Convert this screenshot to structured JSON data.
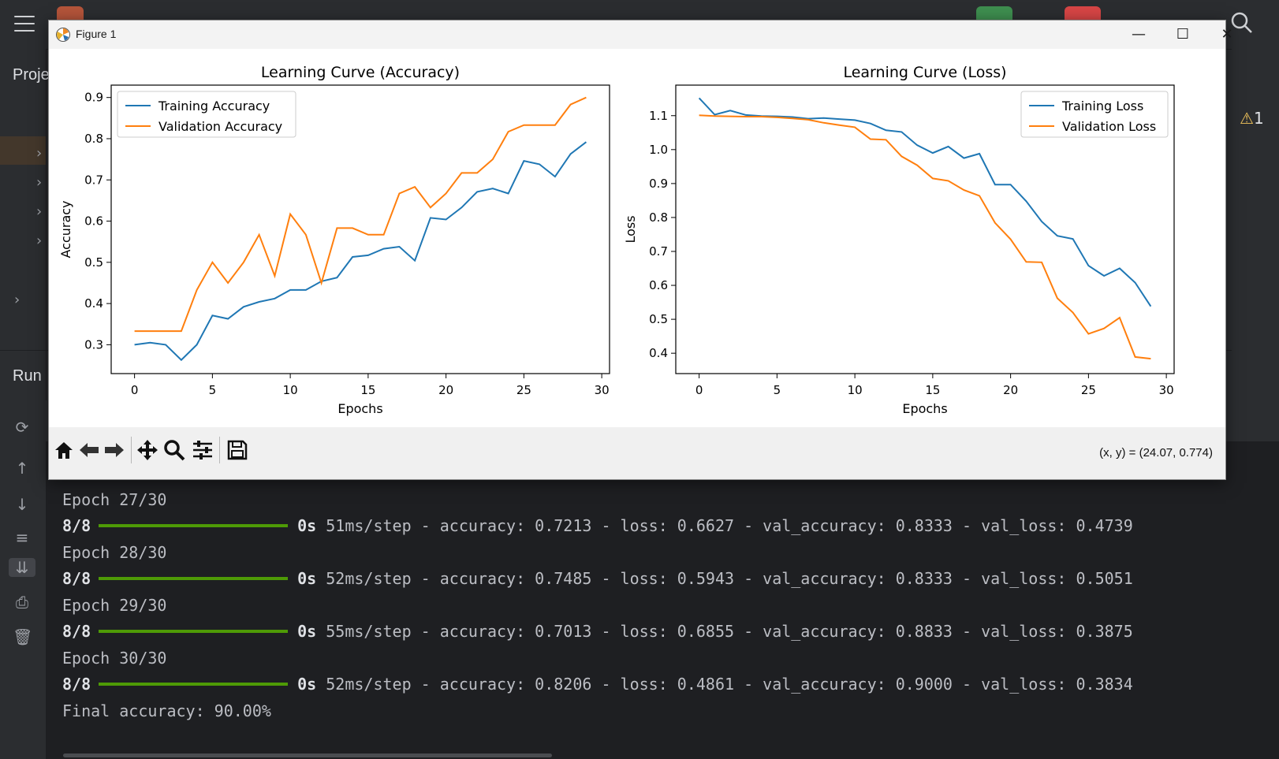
{
  "sidebar": {
    "project_label": "Proje",
    "run_label": "Run"
  },
  "notifications": {
    "warning_count": "1"
  },
  "figure_window": {
    "title": "Figure 1",
    "coord_readout": "(x, y) = (24.07, 0.774)"
  },
  "chart_data": [
    {
      "type": "line",
      "title": "Learning Curve (Accuracy)",
      "xlabel": "Epochs",
      "ylabel": "Accuracy",
      "xlim": [
        -1.5,
        30.5
      ],
      "ylim": [
        0.23,
        0.93
      ],
      "xticks": [
        0,
        5,
        10,
        15,
        20,
        25,
        30
      ],
      "yticks": [
        0.3,
        0.4,
        0.5,
        0.6,
        0.7,
        0.8,
        0.9
      ],
      "legend": "upper-left",
      "series": [
        {
          "name": "Training Accuracy",
          "color": "#1f77b4",
          "values": [
            0.3,
            0.305,
            0.3,
            0.263,
            0.3,
            0.371,
            0.363,
            0.392,
            0.404,
            0.412,
            0.433,
            0.433,
            0.454,
            0.463,
            0.513,
            0.517,
            0.533,
            0.538,
            0.504,
            0.608,
            0.604,
            0.633,
            0.671,
            0.679,
            0.667,
            0.746,
            0.738,
            0.708,
            0.763,
            0.792
          ]
        },
        {
          "name": "Validation Accuracy",
          "color": "#ff7f0e",
          "values": [
            0.333,
            0.333,
            0.333,
            0.333,
            0.433,
            0.5,
            0.45,
            0.5,
            0.567,
            0.467,
            0.617,
            0.567,
            0.45,
            0.583,
            0.583,
            0.567,
            0.567,
            0.667,
            0.683,
            0.633,
            0.667,
            0.717,
            0.717,
            0.75,
            0.817,
            0.833,
            0.833,
            0.833,
            0.883,
            0.9
          ]
        }
      ]
    },
    {
      "type": "line",
      "title": "Learning Curve (Loss)",
      "xlabel": "Epochs",
      "ylabel": "Loss",
      "xlim": [
        -1.5,
        30.5
      ],
      "ylim": [
        0.34,
        1.19
      ],
      "xticks": [
        0,
        5,
        10,
        15,
        20,
        25,
        30
      ],
      "yticks": [
        0.4,
        0.5,
        0.6,
        0.7,
        0.8,
        0.9,
        1.0,
        1.1
      ],
      "legend": "upper-right",
      "series": [
        {
          "name": "Training Loss",
          "color": "#1f77b4",
          "values": [
            1.152,
            1.103,
            1.115,
            1.102,
            1.099,
            1.098,
            1.096,
            1.091,
            1.093,
            1.09,
            1.087,
            1.077,
            1.057,
            1.052,
            1.013,
            0.99,
            1.009,
            0.975,
            0.988,
            0.897,
            0.897,
            0.848,
            0.788,
            0.746,
            0.737,
            0.658,
            0.628,
            0.65,
            0.608,
            0.538
          ]
        },
        {
          "name": "Validation Loss",
          "color": "#ff7f0e",
          "values": [
            1.101,
            1.099,
            1.098,
            1.097,
            1.097,
            1.095,
            1.092,
            1.088,
            1.079,
            1.072,
            1.066,
            1.031,
            1.029,
            0.98,
            0.954,
            0.915,
            0.908,
            0.881,
            0.864,
            0.784,
            0.736,
            0.669,
            0.668,
            0.562,
            0.52,
            0.457,
            0.473,
            0.505,
            0.389,
            0.384
          ]
        }
      ]
    }
  ],
  "console": {
    "lines": [
      {
        "kind": "epoch",
        "text": "Epoch 27/30"
      },
      {
        "kind": "step",
        "count": "8/8",
        "time": "0s",
        "rest": "51ms/step - accuracy: 0.7213 - loss: 0.6627 - val_accuracy: 0.8333 - val_loss: 0.4739"
      },
      {
        "kind": "epoch",
        "text": "Epoch 28/30"
      },
      {
        "kind": "step",
        "count": "8/8",
        "time": "0s",
        "rest": "52ms/step - accuracy: 0.7485 - loss: 0.5943 - val_accuracy: 0.8333 - val_loss: 0.5051"
      },
      {
        "kind": "epoch",
        "text": "Epoch 29/30"
      },
      {
        "kind": "step",
        "count": "8/8",
        "time": "0s",
        "rest": "55ms/step - accuracy: 0.7013 - loss: 0.6855 - val_accuracy: 0.8833 - val_loss: 0.3875"
      },
      {
        "kind": "epoch",
        "text": "Epoch 30/30"
      },
      {
        "kind": "step",
        "count": "8/8",
        "time": "0s",
        "rest": "52ms/step - accuracy: 0.8206 - loss: 0.4861 - val_accuracy: 0.9000 - val_loss: 0.3834"
      },
      {
        "kind": "epoch",
        "text": "Final accuracy: 90.00%"
      }
    ]
  },
  "colors": {
    "progress": "#4e9a06",
    "ide_bg": "#2b2d30",
    "console_bg": "#1e1f22"
  },
  "icons": [
    "menu-icon",
    "search-icon",
    "warning-icon",
    "rerun-icon",
    "arrow-up-icon",
    "arrow-down-icon",
    "wrap-icon",
    "scroll-to-end-icon",
    "print-icon",
    "trash-icon",
    "home-icon",
    "back-icon",
    "forward-icon",
    "pan-icon",
    "zoom-icon",
    "configure-icon",
    "save-icon"
  ]
}
